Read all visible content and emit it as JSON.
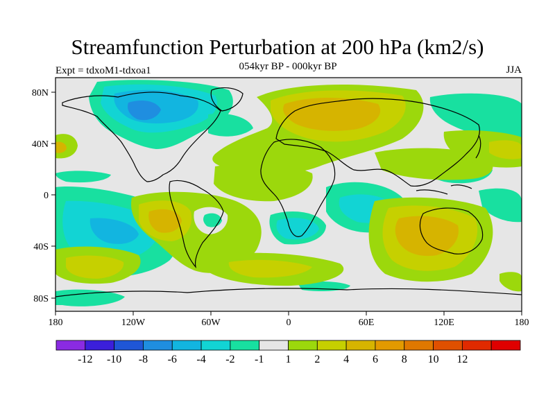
{
  "title": "Streamfunction Perturbation at 200 hPa (km2/s)",
  "subtitle": "054kyr BP - 000kyr BP",
  "experiment": "Expt = tdxoM1-tdxoa1",
  "season": "JJA",
  "lat_ticks": [
    "80N",
    "40N",
    "0",
    "40S",
    "80S"
  ],
  "lon_ticks": [
    "180",
    "120W",
    "60W",
    "0",
    "60E",
    "120E",
    "180"
  ],
  "colorbar": {
    "colors": [
      "#8a2be2",
      "#3b1fdb",
      "#1f56d6",
      "#1f8ee0",
      "#12b5e0",
      "#12d4d4",
      "#18e0a0",
      "#e6e6e6",
      "#9cd80c",
      "#c6d000",
      "#d6b400",
      "#e39a00",
      "#e07800",
      "#e05000",
      "#e02a00",
      "#e00000"
    ],
    "labels": [
      "-12",
      "-10",
      "-8",
      "-6",
      "-4",
      "-2",
      "-1",
      "1",
      "2",
      "4",
      "6",
      "8",
      "10",
      "12"
    ]
  }
}
